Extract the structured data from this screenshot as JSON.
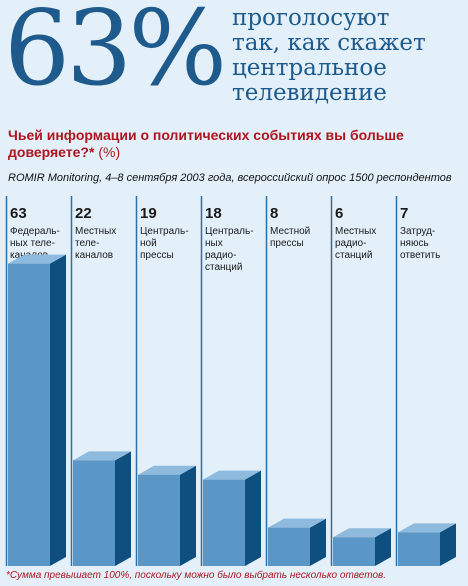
{
  "headline": {
    "big_number": "63%",
    "text_lines": [
      "проголосуют",
      "так, как скажет",
      "центральное",
      "телевидение"
    ]
  },
  "subtitle": {
    "text": "Чьей информации о политических событиях вы больше доверяете?*",
    "unit": "(%)"
  },
  "source": "ROMIR Monitoring, 4–8 сентября 2003 года, всероссийский опрос 1500 респондентов",
  "footnote": "*Сумма превышает 100%, поскольку можно было выбрать несколько ответов.",
  "chart_data": {
    "type": "bar",
    "categories": [
      [
        "Федераль-",
        "ных теле-",
        "каналов"
      ],
      [
        "Местных",
        "теле-",
        "каналов"
      ],
      [
        "Централь-",
        "ной",
        "прессы"
      ],
      [
        "Централь-",
        "ных",
        "радио-",
        "станций"
      ],
      [
        "Местной",
        "прессы"
      ],
      [
        "Местных",
        "радио-",
        "станций"
      ],
      [
        "Затруд-",
        "няюсь",
        "ответить"
      ]
    ],
    "values": [
      63,
      22,
      19,
      18,
      8,
      6,
      7
    ],
    "ylim": [
      0,
      70
    ],
    "colors": {
      "bar_front": "#5b97c6",
      "bar_side": "#0f4f80",
      "bar_top": "#8dbadd",
      "guide_line": "#2c6fa5",
      "background": "#e3f0f9"
    }
  }
}
